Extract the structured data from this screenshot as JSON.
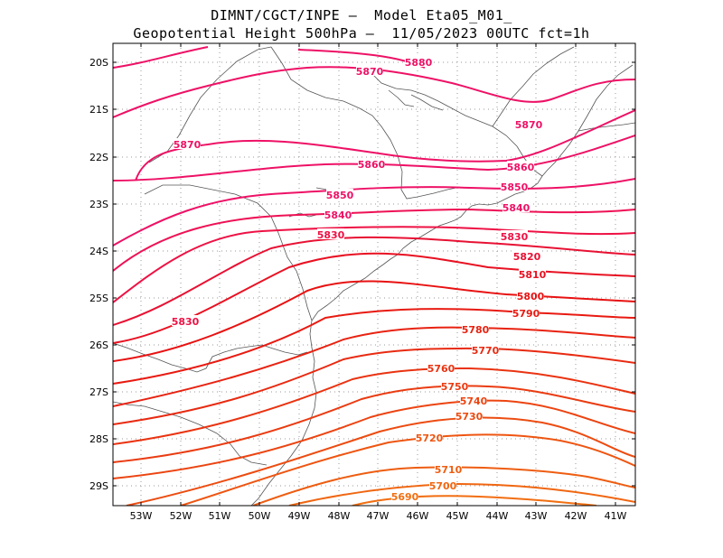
{
  "title": {
    "line1": "DIMNT/CGCT/INPE –  Model Eta05_M01_",
    "line2": "Geopotential Height 500hPa –  11/05/2023 00UTC fct=1h"
  },
  "map": {
    "lon_range": [
      -53.7,
      -40.5
    ],
    "lat_range": [
      -29.5,
      -19.7
    ],
    "lon_ticks": [
      "53W",
      "52W",
      "51W",
      "50W",
      "49W",
      "48W",
      "47W",
      "46W",
      "45W",
      "44W",
      "43W",
      "42W",
      "41W"
    ],
    "lat_ticks": [
      "20S",
      "21S",
      "22S",
      "23S",
      "24S",
      "25S",
      "26S",
      "27S",
      "28S",
      "29S"
    ],
    "grid": true,
    "frame_color": "#000000",
    "coast_color": "#555555"
  },
  "contour_labels": [
    {
      "text": "5880",
      "color": "#ee1166"
    },
    {
      "text": "5870",
      "color": "#ee1166"
    },
    {
      "text": "5870",
      "color": "#ee1166"
    },
    {
      "text": "5870",
      "color": "#ee1166"
    },
    {
      "text": "5860",
      "color": "#ee1166"
    },
    {
      "text": "5860",
      "color": "#ee1166"
    },
    {
      "text": "5850",
      "color": "#ee1166"
    },
    {
      "text": "5850",
      "color": "#ee1166"
    },
    {
      "text": "5840",
      "color": "#ee1166"
    },
    {
      "text": "5840",
      "color": "#ee1166"
    },
    {
      "text": "5830",
      "color": "#ee1144"
    },
    {
      "text": "5830",
      "color": "#ee1144"
    },
    {
      "text": "5830",
      "color": "#ee1144"
    },
    {
      "text": "5820",
      "color": "#e81133"
    },
    {
      "text": "5810",
      "color": "#e81122"
    },
    {
      "text": "5800",
      "color": "#e81111"
    },
    {
      "text": "5790",
      "color": "#e81a11"
    },
    {
      "text": "5780",
      "color": "#e82211"
    },
    {
      "text": "5770",
      "color": "#e82a11"
    },
    {
      "text": "5760",
      "color": "#ea3311"
    },
    {
      "text": "5750",
      "color": "#ea3b11"
    },
    {
      "text": "5740",
      "color": "#ec4411"
    },
    {
      "text": "5730",
      "color": "#ec4c11"
    },
    {
      "text": "5720",
      "color": "#ee5511"
    },
    {
      "text": "5710",
      "color": "#ee5d11"
    },
    {
      "text": "5700",
      "color": "#f06611"
    },
    {
      "text": "5690",
      "color": "#f26e11"
    }
  ]
}
